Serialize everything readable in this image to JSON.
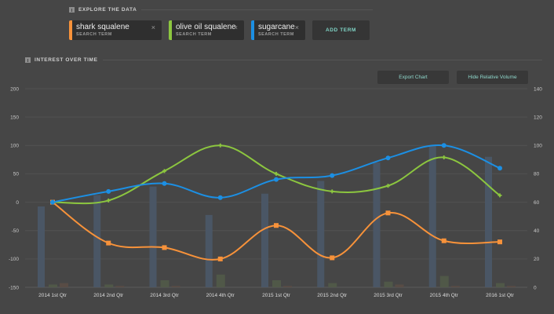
{
  "explore": {
    "title": "EXPLORE THE DATA",
    "terms": [
      {
        "label": "shark squalene",
        "sub": "SEARCH TERM",
        "color": "#f7923a"
      },
      {
        "label": "olive oil squalene",
        "sub": "SEARCH TERM",
        "color": "#8cc63f"
      },
      {
        "label": "sugarcane",
        "sub": "SEARCH TERM",
        "color": "#1c8fe3"
      }
    ],
    "close_glyph": "×",
    "add_term_label": "ADD TERM"
  },
  "interest": {
    "title": "INTEREST OVER TIME",
    "export_label": "Export Chart",
    "hide_volume_label": "Hide Relative Volume"
  },
  "chart_data": {
    "type": "line",
    "title": "Interest Over Time",
    "xlabel": "",
    "ylabel": "",
    "grid": true,
    "categories": [
      "2014 1st Qtr",
      "2014 2nd Qtr",
      "2014 3rd Qtr",
      "2014 4th Qtr",
      "2015 1st Qtr",
      "2015 2nd Qtr",
      "2015 3rd Qtr",
      "2015 4th Qtr",
      "2016 1st Qtr"
    ],
    "ylim": [
      -150,
      200
    ],
    "yticks": [
      200,
      150,
      100,
      50,
      0,
      -50,
      -100,
      -150
    ],
    "y2lim": [
      0,
      140
    ],
    "y2ticks": [
      140,
      120,
      100,
      80,
      60,
      40,
      20,
      0
    ],
    "series": [
      {
        "name": "shark squalene",
        "color": "#f7923a",
        "marker": "square",
        "values": [
          0,
          -72,
          -80,
          -100,
          -41,
          -98,
          -19,
          -68,
          -70
        ]
      },
      {
        "name": "olive oil squalene",
        "color": "#8cc63f",
        "marker": "plus",
        "values": [
          0,
          3,
          55,
          100,
          50,
          19,
          29,
          79,
          12
        ]
      },
      {
        "name": "sugarcane",
        "color": "#1c8fe3",
        "marker": "circle",
        "values": [
          0,
          19,
          33,
          8,
          40,
          47,
          78,
          100,
          60
        ]
      }
    ],
    "volume_series": [
      {
        "name": "sugarcane volume",
        "color": "#4a5868",
        "values": [
          57,
          65,
          71,
          51,
          66,
          75,
          88,
          100,
          92
        ]
      },
      {
        "name": "olive oil squalene volume",
        "color": "#515a48",
        "values": [
          2,
          2,
          5,
          9,
          5,
          3,
          4,
          8,
          3
        ]
      },
      {
        "name": "shark squalene volume",
        "color": "#5a4d45",
        "values": [
          3,
          1,
          1,
          0,
          1,
          0,
          2,
          1,
          1
        ]
      }
    ]
  }
}
